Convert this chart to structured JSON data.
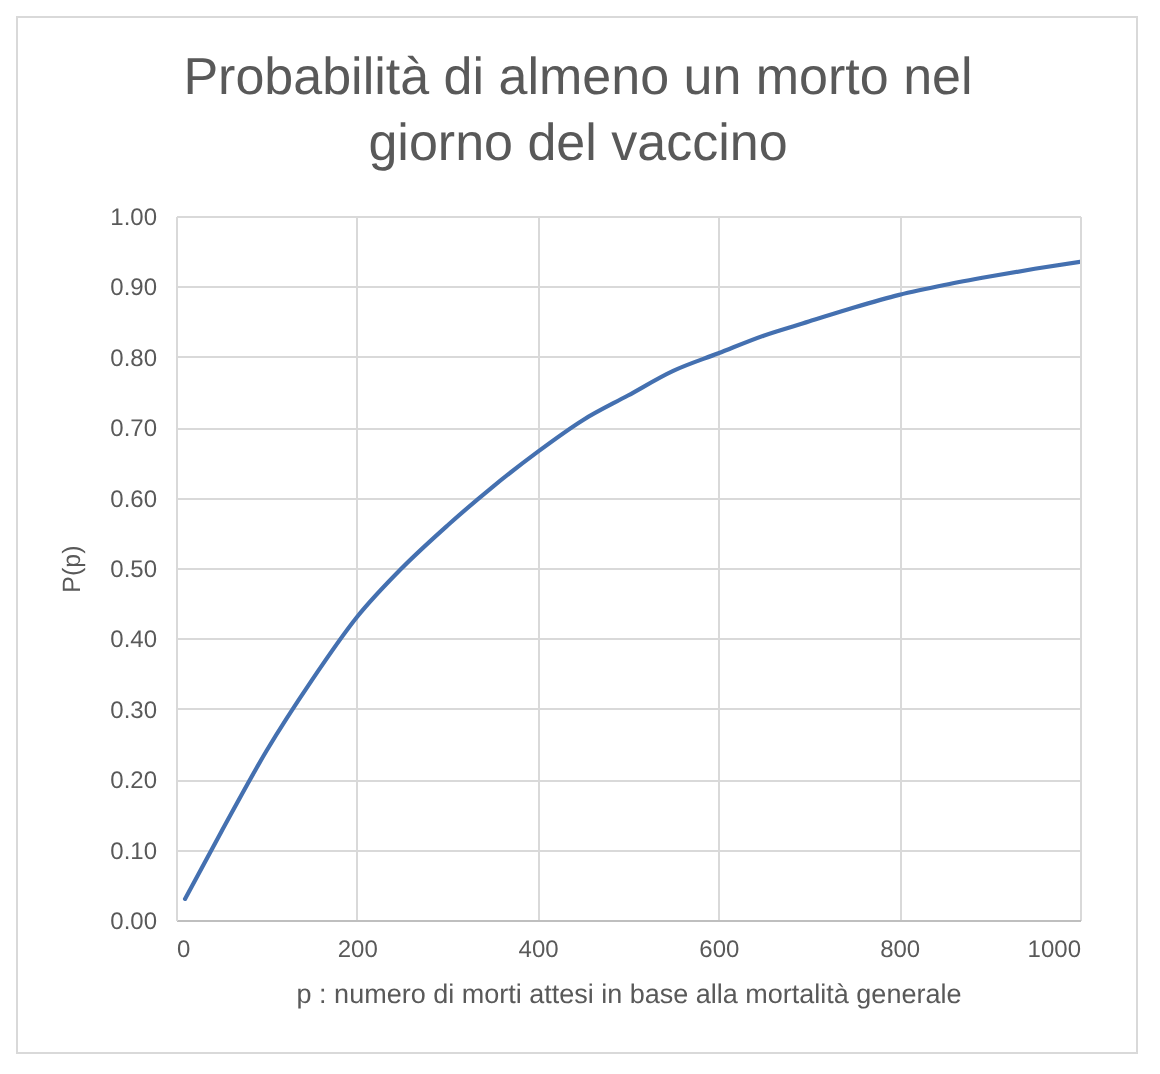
{
  "chart_data": {
    "type": "line",
    "title": "Probabilità di almeno un morto nel giorno del vaccino",
    "xlabel": "p : numero di morti attesi in base alla mortalità generale",
    "ylabel": "P(p)",
    "x": [
      10,
      50,
      100,
      150,
      200,
      250,
      300,
      350,
      400,
      450,
      500,
      550,
      600,
      650,
      700,
      750,
      800,
      850,
      900,
      950,
      1000
    ],
    "series": [
      {
        "color": "#4470b0",
        "values": [
          0.03,
          0.125,
          0.24,
          0.34,
          0.43,
          0.5,
          0.56,
          0.615,
          0.665,
          0.71,
          0.745,
          0.78,
          0.805,
          0.83,
          0.85,
          0.87,
          0.888,
          0.902,
          0.914,
          0.925,
          0.935
        ]
      }
    ],
    "xlim": [
      0,
      1000
    ],
    "xticks": [
      0,
      200,
      400,
      600,
      800,
      1000
    ],
    "ylim": [
      0,
      1
    ],
    "yticks": [
      {
        "value": 0,
        "label": "0.00"
      },
      {
        "value": 0.1,
        "label": "0.10"
      },
      {
        "value": 0.2,
        "label": "0.20"
      },
      {
        "value": 0.3,
        "label": "0.30"
      },
      {
        "value": 0.4,
        "label": "0.40"
      },
      {
        "value": 0.5,
        "label": "0.50"
      },
      {
        "value": 0.6,
        "label": "0.60"
      },
      {
        "value": 0.7,
        "label": "0.70"
      },
      {
        "value": 0.8,
        "label": "0.80"
      },
      {
        "value": 0.9,
        "label": "0.90"
      },
      {
        "value": 1,
        "label": "1.00"
      }
    ],
    "grid": true
  }
}
